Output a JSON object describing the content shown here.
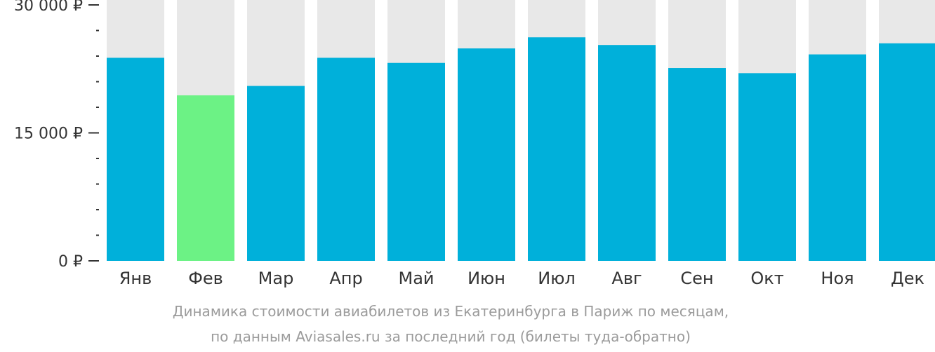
{
  "chart_data": {
    "type": "bar",
    "title": "",
    "xlabel": "",
    "ylabel": "",
    "categories": [
      "Янв",
      "Фев",
      "Мар",
      "Апр",
      "Май",
      "Июн",
      "Июл",
      "Авг",
      "Сен",
      "Окт",
      "Ноя",
      "Дек"
    ],
    "values": [
      23800,
      19400,
      20500,
      23800,
      23200,
      24900,
      26200,
      25300,
      22600,
      22000,
      24200,
      25500
    ],
    "highlight_index": 1,
    "ylim": [
      0,
      30000
    ],
    "y_ticks": [
      {
        "value": 30000,
        "label": "30 000 ₽"
      },
      {
        "value": 15000,
        "label": "15 000 ₽"
      },
      {
        "value": 0,
        "label": "0 ₽"
      }
    ],
    "minor_tick_step": 3000,
    "colors": {
      "bar": "#00b0da",
      "highlight": "#6cf285",
      "background_column": "#e8e8e8",
      "axis_text": "#333333",
      "caption": "#9b9b9b"
    }
  },
  "caption": {
    "line1": "Динамика стоимости авиабилетов из Екатеринбурга в Париж по месяцам,",
    "line2": "по данным Aviasales.ru за последний год (билеты туда-обратно)"
  }
}
